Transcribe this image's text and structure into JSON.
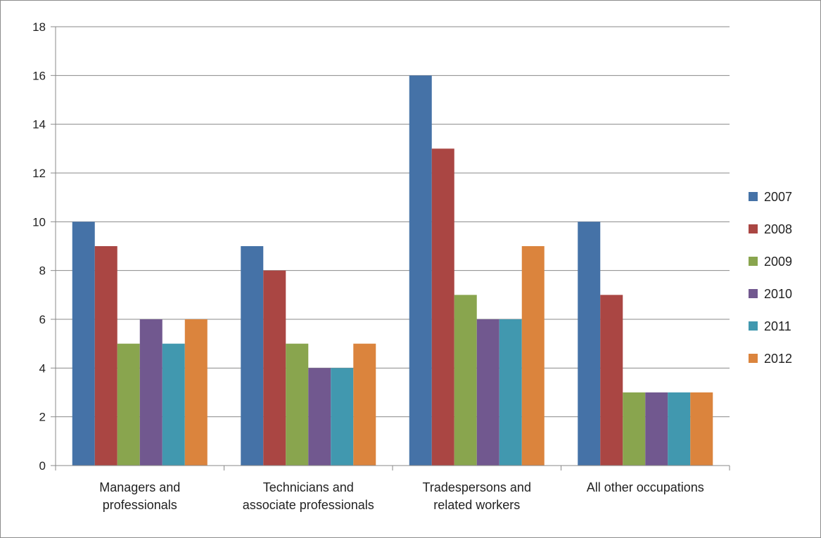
{
  "chart_data": {
    "type": "bar",
    "title": "",
    "xlabel": "",
    "ylabel": "",
    "categories": [
      [
        "Managers and",
        "professionals"
      ],
      [
        "Technicians and",
        "associate professionals"
      ],
      [
        "Tradespersons and",
        "related workers"
      ],
      [
        "All other occupations"
      ]
    ],
    "series": [
      {
        "name": "2007",
        "color": "#4572a7",
        "values": [
          10,
          9,
          16,
          10
        ]
      },
      {
        "name": "2008",
        "color": "#aa4643",
        "values": [
          9,
          8,
          13,
          7
        ]
      },
      {
        "name": "2009",
        "color": "#89a54e",
        "values": [
          5,
          5,
          7,
          3
        ]
      },
      {
        "name": "2010",
        "color": "#71588f",
        "values": [
          6,
          4,
          6,
          3
        ]
      },
      {
        "name": "2011",
        "color": "#4198af",
        "values": [
          5,
          4,
          6,
          3
        ]
      },
      {
        "name": "2012",
        "color": "#db843d",
        "values": [
          6,
          5,
          9,
          3
        ]
      }
    ],
    "ylim": [
      0,
      18
    ],
    "yticks": [
      0,
      2,
      4,
      6,
      8,
      10,
      12,
      14,
      16,
      18
    ],
    "grid": true,
    "legend": "right"
  }
}
